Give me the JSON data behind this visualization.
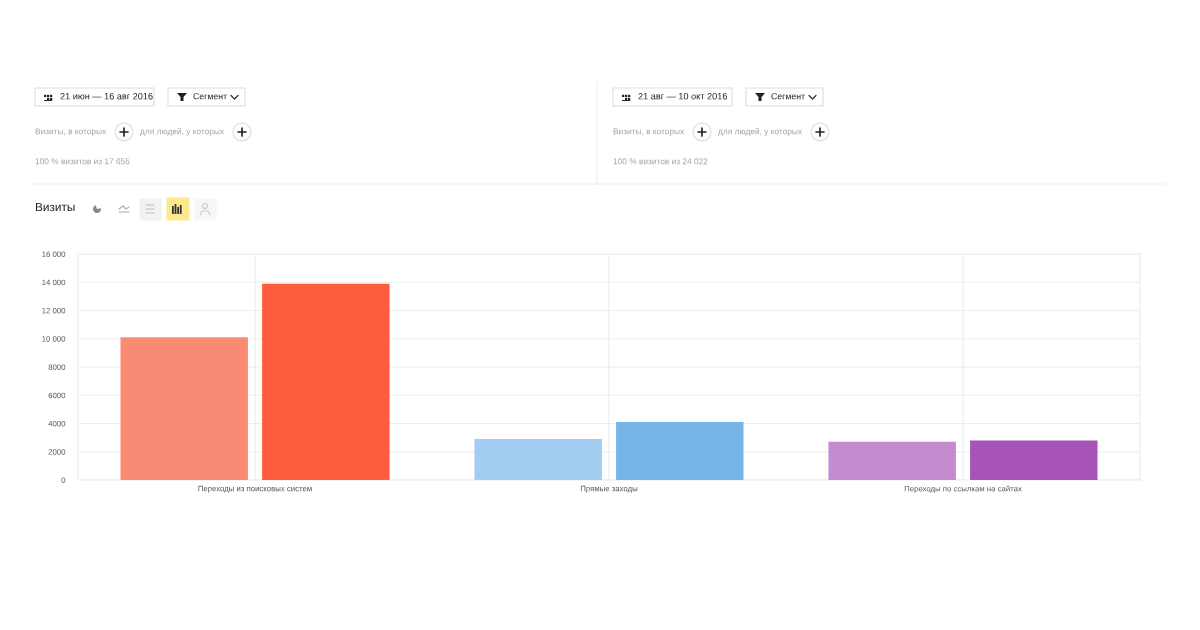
{
  "chart_data": {
    "type": "bar",
    "title": "Визиты",
    "categories": [
      "Переходы из поисковых систем",
      "Прямые заходы",
      "Переходы по ссылкам на сайтах"
    ],
    "series": [
      {
        "values": [
          10100,
          2900,
          2700
        ],
        "colors": [
          "#f98a73",
          "#a3cdf0",
          "#c48bd0"
        ]
      },
      {
        "values": [
          13900,
          4100,
          2800
        ],
        "colors": [
          "#fe5c3e",
          "#76b5e5",
          "#a654b8"
        ]
      }
    ],
    "ylim": [
      0,
      16000
    ],
    "yticks": [
      0,
      2000,
      4000,
      6000,
      8000,
      {
        "value": 10000,
        "label": "10 000"
      },
      {
        "value": 12000,
        "label": "12 000"
      },
      {
        "value": 14000,
        "label": "14 000"
      },
      {
        "value": 16000,
        "label": "16 000"
      }
    ],
    "grid": true,
    "annotations": [
      "21 июн — 16 авг 2016",
      "Сегмент",
      "Визиты, в которых",
      "для людей, у которых",
      "100 % визитов из 17 655",
      "21 авг — 10 окт 2016",
      "Сегмент",
      "Визиты, в которых",
      "для людей, у которых",
      "100 % визитов из 24 022"
    ]
  }
}
